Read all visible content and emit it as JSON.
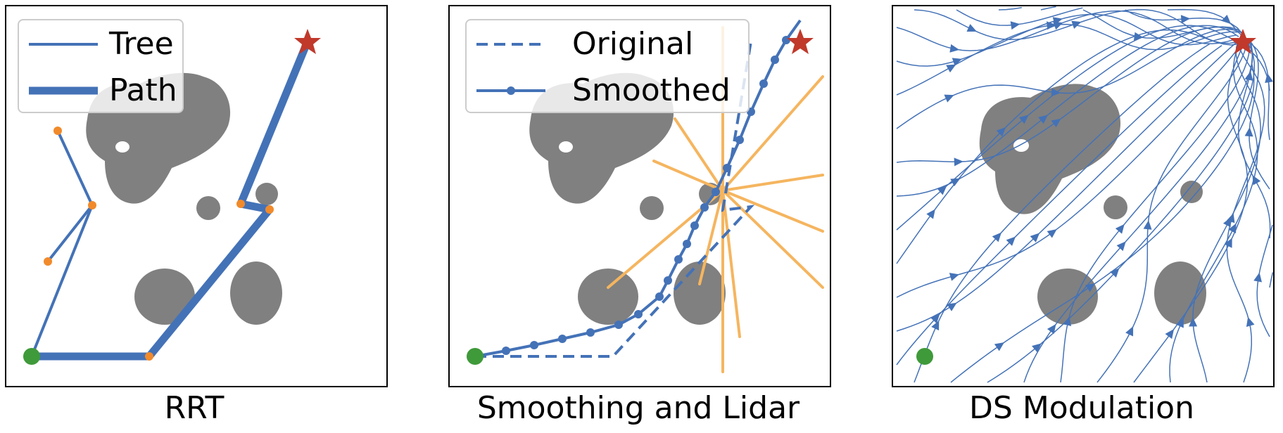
{
  "colors": {
    "obstacle": "#808080",
    "tree": "#4472b7",
    "path": "#4472b7",
    "node": "#f18a2b",
    "start": "#3f9a3a",
    "goal": "#c0392b",
    "lidar": "#f5b55f",
    "streamline": "#4472b7"
  },
  "panels": [
    {
      "caption": "RRT",
      "legend": [
        {
          "label": "Tree",
          "style": "thin-line"
        },
        {
          "label": "Path",
          "style": "thick-line"
        }
      ]
    },
    {
      "caption": "Smoothing and Lidar",
      "legend": [
        {
          "label": "Original",
          "style": "dashed-line"
        },
        {
          "label": "Smoothed",
          "style": "line-with-dots"
        }
      ]
    },
    {
      "caption": "DS Modulation",
      "legend": []
    }
  ]
}
